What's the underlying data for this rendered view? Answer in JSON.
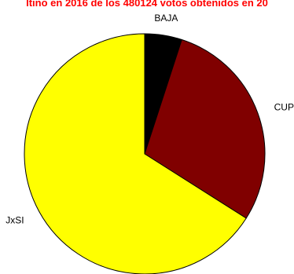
{
  "chart_data": {
    "type": "pie",
    "title": "ltino en 2016 de los 480124 votos obtenidos en 20",
    "categories": [
      "BAJA",
      "CUP",
      "JxSI"
    ],
    "values": [
      5,
      29,
      66
    ],
    "colors": [
      "#000000",
      "#800000",
      "#ffff00"
    ],
    "legend": "none"
  }
}
